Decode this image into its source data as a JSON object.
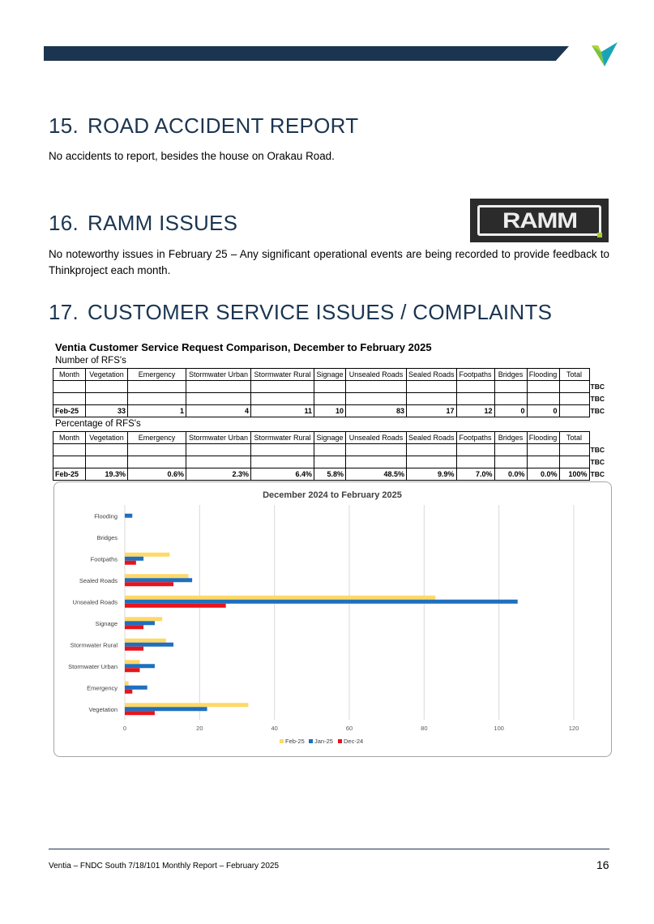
{
  "header": {
    "logo_icon": "ventia-v-logo-icon"
  },
  "sections": {
    "s15": {
      "num": "15.",
      "title": "ROAD ACCIDENT REPORT",
      "body": "No accidents to report, besides the house on Orakau Road."
    },
    "s16": {
      "num": "16.",
      "title": "RAMM ISSUES",
      "body": "No noteworthy issues in February 25 – Any significant operational events are being recorded to provide feedback to Thinkproject each month.",
      "logo_text": "RAMM"
    },
    "s17": {
      "num": "17.",
      "title": "CUSTOMER SERVICE ISSUES / COMPLAINTS"
    }
  },
  "tables": {
    "title": "Ventia Customer Service Request Comparison, December to  February 2025",
    "columns": [
      "Month",
      "Vegetation",
      "Emergency",
      "Stormwater Urban",
      "Stormwater Rural",
      "Signage",
      "Unsealed Roads",
      "Sealed Roads",
      "Footpaths",
      "Bridges",
      "Flooding",
      "Total"
    ],
    "counts": {
      "subtitle": "Number of RFS's",
      "rows": [
        [
          "",
          "",
          "",
          "",
          "",
          "",
          "",
          "",
          "",
          "",
          "",
          ""
        ],
        [
          "",
          "",
          "",
          "",
          "",
          "",
          "",
          "",
          "",
          "",
          "",
          ""
        ],
        [
          "Feb-25",
          "33",
          "1",
          "4",
          "11",
          "10",
          "83",
          "17",
          "12",
          "0",
          "0",
          ""
        ]
      ],
      "side": [
        "TBC",
        "TBC",
        "TBC"
      ]
    },
    "percent": {
      "subtitle": "Percentage of RFS's",
      "rows": [
        [
          "",
          "",
          "",
          "",
          "",
          "",
          "",
          "",
          "",
          "",
          "",
          ""
        ],
        [
          "",
          "",
          "",
          "",
          "",
          "",
          "",
          "",
          "",
          "",
          "",
          ""
        ],
        [
          "Feb-25",
          "19.3%",
          "0.6%",
          "2.3%",
          "6.4%",
          "5.8%",
          "48.5%",
          "9.9%",
          "7.0%",
          "0.0%",
          "0.0%",
          "100%"
        ]
      ],
      "side": [
        "TBC",
        "TBC",
        "TBC"
      ]
    }
  },
  "chart_data": {
    "type": "bar",
    "orientation": "horizontal",
    "title": "December 2024 to  February 2025",
    "categories": [
      "Vegetation",
      "Emergency",
      "Stormwater Urban",
      "Stormwater Rural",
      "Signage",
      "Unsealed Roads",
      "Sealed Roads",
      "Footpaths",
      "Bridges",
      "Flooding"
    ],
    "series": [
      {
        "name": "Feb-25",
        "color": "#ffd966",
        "values": [
          33,
          1,
          4,
          11,
          10,
          83,
          17,
          12,
          0,
          0
        ]
      },
      {
        "name": "Jan-25",
        "color": "#1f6fbf",
        "values": [
          22,
          6,
          8,
          13,
          8,
          105,
          18,
          5,
          0,
          2
        ]
      },
      {
        "name": "Dec-24",
        "color": "#e8141c",
        "values": [
          8,
          2,
          4,
          5,
          5,
          27,
          13,
          3,
          0,
          0
        ]
      }
    ],
    "xlim": [
      0,
      120
    ],
    "xticks": [
      0,
      20,
      40,
      60,
      80,
      100,
      120
    ],
    "grid": true,
    "legend": "bottom"
  },
  "footer": {
    "text": "Ventia – FNDC South 7/18/101 Monthly Report – February 2025",
    "page": "16"
  }
}
